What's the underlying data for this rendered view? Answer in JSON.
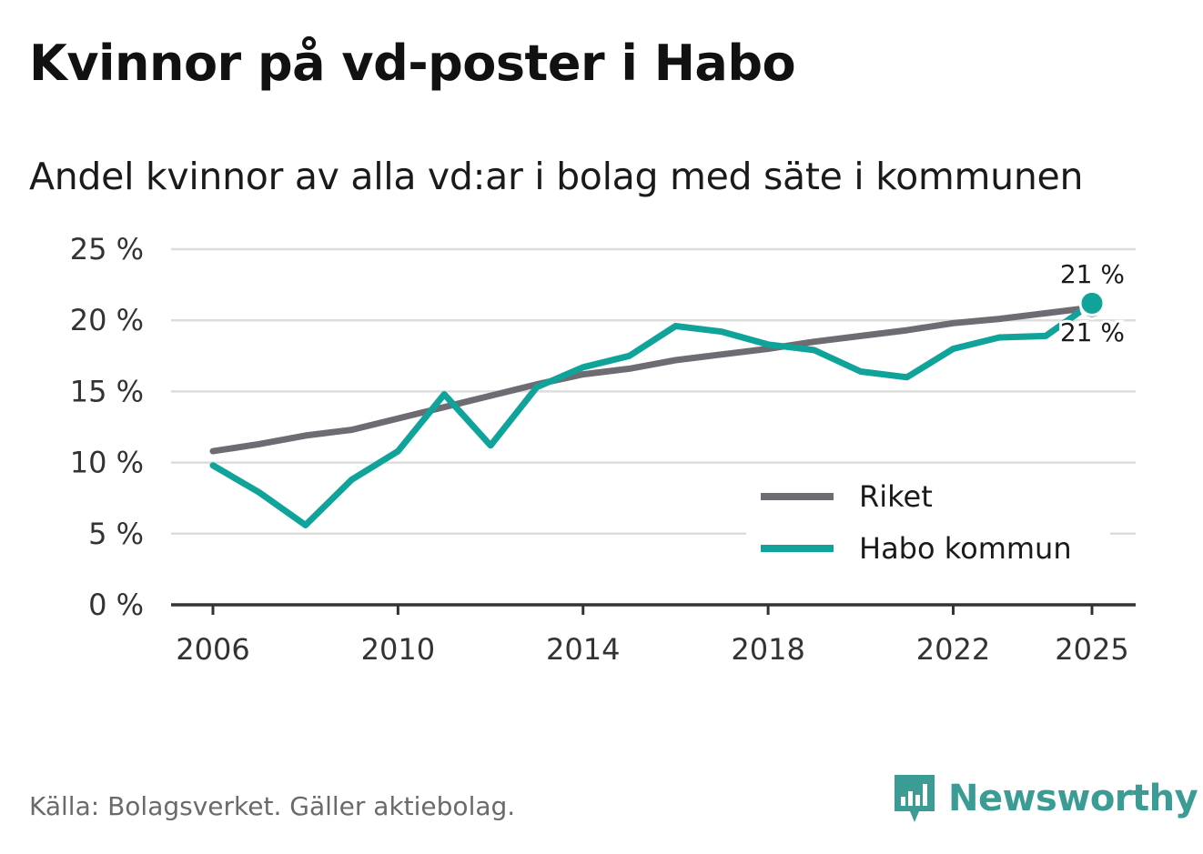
{
  "title": "Kvinnor på vd-poster i Habo",
  "subtitle": "Andel kvinnor av alla vd:ar i bolag med säte i kommunen",
  "source": "Källa: Bolagsverket. Gäller aktiebolag.",
  "brand": "Newsworthy",
  "colors": {
    "riket": "#6e6c72",
    "habo": "#10a39a",
    "grid": "#dddddd",
    "axis": "#333333",
    "brand": "#3a9c95"
  },
  "chart_data": {
    "type": "line",
    "title": "Kvinnor på vd-poster i Habo",
    "subtitle": "Andel kvinnor av alla vd:ar i bolag med säte i kommunen",
    "xlabel": "",
    "ylabel": "",
    "xlim": [
      2006,
      2025
    ],
    "ylim": [
      0,
      25
    ],
    "y_ticks": [
      0,
      5,
      10,
      15,
      20,
      25
    ],
    "y_tick_labels": [
      "0 %",
      "5 %",
      "10 %",
      "15 %",
      "20 %",
      "25 %"
    ],
    "x_ticks": [
      2006,
      2010,
      2014,
      2018,
      2022,
      2025
    ],
    "x_tick_labels": [
      "2006",
      "2010",
      "2014",
      "2018",
      "2022",
      "2025"
    ],
    "grid": true,
    "legend_position": "bottom-right",
    "x": [
      2006,
      2007,
      2008,
      2009,
      2010,
      2011,
      2012,
      2013,
      2014,
      2015,
      2016,
      2017,
      2018,
      2019,
      2020,
      2021,
      2022,
      2023,
      2024,
      2025
    ],
    "series": [
      {
        "name": "Riket",
        "color": "#6e6c72",
        "values": [
          10.8,
          11.3,
          11.9,
          12.3,
          13.1,
          13.9,
          14.7,
          15.5,
          16.2,
          16.6,
          17.2,
          17.6,
          18.0,
          18.5,
          18.9,
          19.3,
          19.8,
          20.1,
          20.5,
          20.9
        ],
        "end_label": "21 %"
      },
      {
        "name": "Habo kommun",
        "color": "#10a39a",
        "values": [
          9.8,
          7.9,
          5.6,
          8.8,
          10.8,
          14.8,
          11.2,
          15.3,
          16.7,
          17.5,
          19.6,
          19.2,
          18.3,
          17.9,
          16.4,
          16.0,
          18.0,
          18.8,
          18.9,
          21.2
        ],
        "end_label": "21 %"
      }
    ]
  }
}
